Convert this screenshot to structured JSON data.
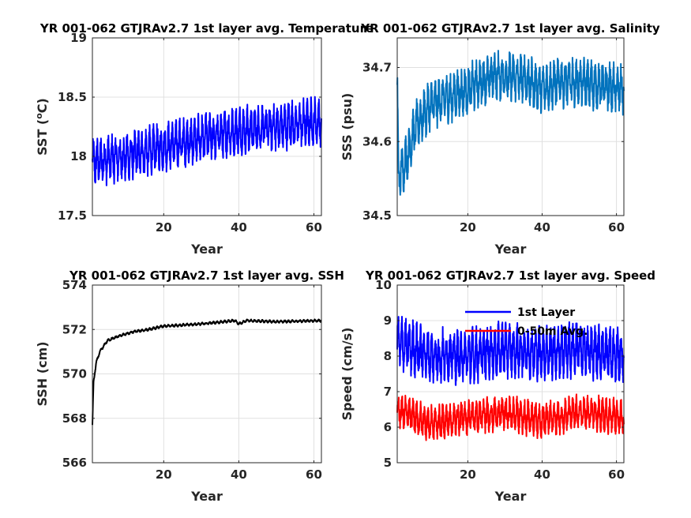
{
  "chart_data": [
    {
      "type": "line",
      "title": "YR 001-062 GTJRAv2.7 1st layer avg. Temperature",
      "xlabel": "Year",
      "ylabel": "SST (",
      "ylabel_degree": "o",
      "ylabel_unit": "C)",
      "xlim": [
        1,
        62
      ],
      "ylim": [
        17.5,
        19
      ],
      "xticks": [
        20,
        40,
        60
      ],
      "xtick_labels": [
        "20",
        "40",
        "60"
      ],
      "yticks": [
        17.5,
        18,
        18.5,
        19
      ],
      "ytick_labels": [
        "17.5",
        "18",
        "18.5",
        "19"
      ],
      "grid": true,
      "series": [
        {
          "color": "#0000ff",
          "trend": [
            [
              1,
              17.95
            ],
            [
              10,
              18.0
            ],
            [
              20,
              18.08
            ],
            [
              30,
              18.15
            ],
            [
              40,
              18.22
            ],
            [
              50,
              18.25
            ],
            [
              62,
              18.3
            ]
          ],
          "amplitude": 0.17,
          "seasonal": true
        }
      ]
    },
    {
      "type": "line",
      "title": "YR 001-062 GTJRAv2.7 1st layer avg. Salinity",
      "xlabel": "Year",
      "ylabel": "SSS (psu)",
      "xlim": [
        1,
        62
      ],
      "ylim": [
        34.5,
        34.74
      ],
      "xticks": [
        20,
        40,
        60
      ],
      "xtick_labels": [
        "20",
        "40",
        "60"
      ],
      "yticks": [
        34.5,
        34.6,
        34.7
      ],
      "ytick_labels": [
        "34.5",
        "34.6",
        "34.7"
      ],
      "grid": true,
      "series": [
        {
          "color": "#0072bd",
          "trend": [
            [
              1,
              34.69
            ],
            [
              1.3,
              34.55
            ],
            [
              3,
              34.57
            ],
            [
              6,
              34.62
            ],
            [
              10,
              34.65
            ],
            [
              20,
              34.67
            ],
            [
              27,
              34.69
            ],
            [
              35,
              34.685
            ],
            [
              40,
              34.672
            ],
            [
              44,
              34.68
            ],
            [
              50,
              34.68
            ],
            [
              62,
              34.67
            ]
          ],
          "amplitude": 0.028,
          "seasonal": true
        }
      ]
    },
    {
      "type": "line",
      "title": "YR 001-062 GTJRAv2.7 1st layer avg. SSH",
      "xlabel": "Year",
      "ylabel": "SSH (cm)",
      "xlim": [
        1,
        62
      ],
      "ylim": [
        566,
        574
      ],
      "xticks": [
        20,
        40,
        60
      ],
      "xtick_labels": [
        "20",
        "40",
        "60"
      ],
      "yticks": [
        566,
        568,
        570,
        572,
        574
      ],
      "ytick_labels": [
        "566",
        "568",
        "570",
        "572",
        "574"
      ],
      "grid": true,
      "series": [
        {
          "color": "#000000",
          "trend": [
            [
              1,
              567.7
            ],
            [
              1.3,
              569.6
            ],
            [
              2,
              570.5
            ],
            [
              3,
              571.0
            ],
            [
              5,
              571.5
            ],
            [
              8,
              571.7
            ],
            [
              12,
              571.9
            ],
            [
              16,
              572.0
            ],
            [
              20,
              572.15
            ],
            [
              30,
              572.25
            ],
            [
              39,
              572.4
            ],
            [
              40,
              572.25
            ],
            [
              42,
              572.4
            ],
            [
              50,
              572.35
            ],
            [
              62,
              572.4
            ]
          ],
          "amplitude": 0.05,
          "seasonal": true
        }
      ]
    },
    {
      "type": "line",
      "title": "YR 001-062 GTJRAv2.7 1st layer avg. Speed",
      "xlabel": "Year",
      "ylabel": "Speed (cm/s)",
      "xlim": [
        1,
        62
      ],
      "ylim": [
        5,
        10
      ],
      "xticks": [
        20,
        40,
        60
      ],
      "xtick_labels": [
        "20",
        "40",
        "60"
      ],
      "yticks": [
        5,
        6,
        7,
        8,
        9,
        10
      ],
      "ytick_labels": [
        "5",
        "6",
        "7",
        "8",
        "9",
        "10"
      ],
      "grid": true,
      "legend": {
        "placement": "top-right"
      },
      "series": [
        {
          "name": "1st Layer",
          "color": "#0000ff",
          "trend": [
            [
              1,
              8.4
            ],
            [
              10,
              8.0
            ],
            [
              20,
              8.0
            ],
            [
              30,
              8.2
            ],
            [
              40,
              8.1
            ],
            [
              50,
              8.2
            ],
            [
              62,
              8.0
            ]
          ],
          "amplitude": 0.65,
          "seasonal": true
        },
        {
          "name": "0-50m Avg.",
          "color": "#ff0000",
          "trend": [
            [
              1,
              6.5
            ],
            [
              10,
              6.1
            ],
            [
              20,
              6.3
            ],
            [
              30,
              6.4
            ],
            [
              40,
              6.2
            ],
            [
              50,
              6.4
            ],
            [
              62,
              6.3
            ]
          ],
          "amplitude": 0.42,
          "seasonal": true
        }
      ]
    }
  ]
}
